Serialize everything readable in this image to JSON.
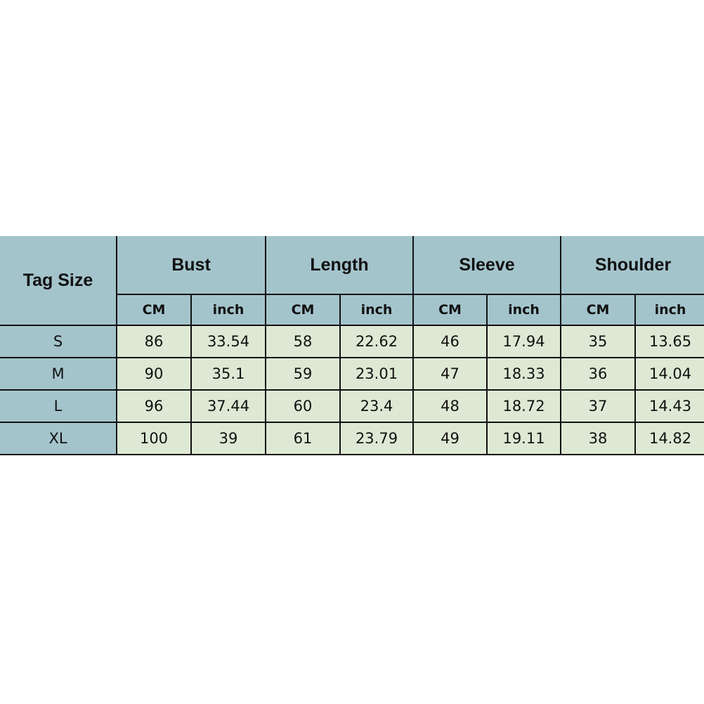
{
  "header": {
    "tag_size": "Tag Size",
    "groups": [
      "Bust",
      "Length",
      "Sleeve",
      "Shoulder"
    ],
    "units": [
      "CM",
      "inch"
    ]
  },
  "rows": [
    {
      "size": "S",
      "values": [
        "86",
        "33.54",
        "58",
        "22.62",
        "46",
        "17.94",
        "35",
        "13.65"
      ]
    },
    {
      "size": "M",
      "values": [
        "90",
        "35.1",
        "59",
        "23.01",
        "47",
        "18.33",
        "36",
        "14.04"
      ]
    },
    {
      "size": "L",
      "values": [
        "96",
        "37.44",
        "60",
        "23.4",
        "48",
        "18.72",
        "37",
        "14.43"
      ]
    },
    {
      "size": "XL",
      "values": [
        "100",
        "39",
        "61",
        "23.79",
        "49",
        "19.11",
        "38",
        "14.82"
      ]
    }
  ],
  "colors": {
    "header": "#a4c4cc",
    "cells": "#dde9d4"
  }
}
